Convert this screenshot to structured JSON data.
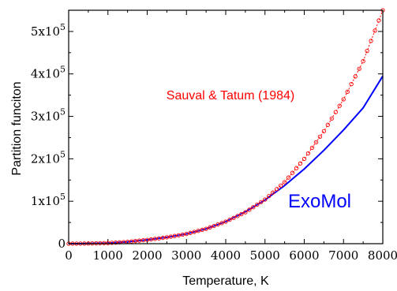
{
  "chart_data": {
    "type": "line",
    "xlabel": "Temperature, K",
    "ylabel": "Partition funciton",
    "xlim": [
      0,
      8000
    ],
    "ylim": [
      0,
      550000
    ],
    "x_ticks": [
      0,
      1000,
      2000,
      3000,
      4000,
      5000,
      6000,
      7000,
      8000
    ],
    "x_tick_labels": [
      "0",
      "1000",
      "2000",
      "3000",
      "4000",
      "5000",
      "6000",
      "7000",
      "8000"
    ],
    "y_ticks": [
      0,
      100000,
      200000,
      300000,
      400000,
      500000
    ],
    "y_tick_labels": [
      {
        "base": "0",
        "exp": ""
      },
      {
        "base": "1x10",
        "exp": "5"
      },
      {
        "base": "2x10",
        "exp": "5"
      },
      {
        "base": "3x10",
        "exp": "5"
      },
      {
        "base": "4x10",
        "exp": "5"
      },
      {
        "base": "5x10",
        "exp": "5"
      }
    ],
    "grid": false,
    "annotations": [
      {
        "text": "Sauval & Tatum (1984)",
        "color": "#ff0000"
      },
      {
        "text": "ExoMol",
        "color": "#0000ff"
      }
    ],
    "series": [
      {
        "color": "#0000ff",
        "style": "solid line",
        "x": [
          0,
          500,
          1000,
          1500,
          2000,
          2500,
          3000,
          3500,
          4000,
          4500,
          5000,
          5500,
          6000,
          6500,
          7000,
          7500,
          8000
        ],
        "y": [
          0,
          400,
          1500,
          4500,
          9000,
          15000,
          23000,
          35000,
          52000,
          75000,
          103000,
          137000,
          176000,
          220000,
          268000,
          320000,
          395000
        ]
      },
      {
        "color": "#ff0000",
        "style": "dotted line with open circles",
        "x": [
          0,
          500,
          1000,
          1500,
          2000,
          2500,
          3000,
          3500,
          4000,
          4500,
          5000,
          5500,
          6000,
          6500,
          7000,
          7500,
          8000
        ],
        "y": [
          0,
          400,
          1500,
          4300,
          9000,
          15000,
          23000,
          35000,
          52000,
          74000,
          104000,
          145000,
          200000,
          265000,
          340000,
          430000,
          550000
        ]
      }
    ]
  }
}
